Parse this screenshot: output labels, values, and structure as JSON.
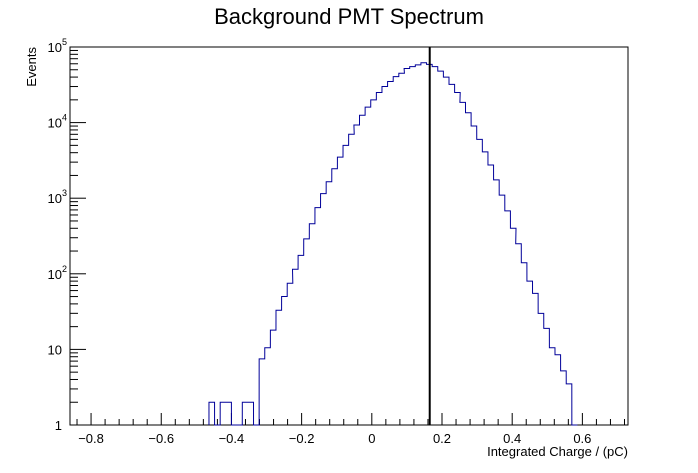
{
  "chart_data": {
    "type": "histogram",
    "title": "Background PMT Spectrum",
    "xlabel": "Integrated Charge / (pC)",
    "ylabel": "Events",
    "xlim": [
      -0.86,
      0.73
    ],
    "ylim": [
      1,
      100000
    ],
    "y_scale": "log",
    "grid": false,
    "legend": "none",
    "colors": {
      "histogram": "#000099",
      "cut_line": "#000000",
      "frame": "#000000"
    },
    "x_ticks": [
      {
        "value": -0.8,
        "label": "−0.8"
      },
      {
        "value": -0.6,
        "label": "−0.6"
      },
      {
        "value": -0.4,
        "label": "−0.4"
      },
      {
        "value": -0.2,
        "label": "−0.2"
      },
      {
        "value": 0,
        "label": "0"
      },
      {
        "value": 0.2,
        "label": "0.2"
      },
      {
        "value": 0.4,
        "label": "0.4"
      },
      {
        "value": 0.6,
        "label": "0.6"
      }
    ],
    "y_ticks": [
      {
        "value": 1,
        "base": "1",
        "exp": ""
      },
      {
        "value": 10,
        "base": "10",
        "exp": ""
      },
      {
        "value": 100,
        "base": "10",
        "exp": "2"
      },
      {
        "value": 1000,
        "base": "10",
        "exp": "3"
      },
      {
        "value": 10000,
        "base": "10",
        "exp": "4"
      },
      {
        "value": 100000,
        "base": "10",
        "exp": "5"
      }
    ],
    "bin_width": 0.0159,
    "bins": [
      {
        "x0": -0.464,
        "count": 2
      },
      {
        "x0": -0.448,
        "count": 1
      },
      {
        "x0": -0.432,
        "count": 2
      },
      {
        "x0": -0.416,
        "count": 2
      },
      {
        "x0": -0.4,
        "count": 1
      },
      {
        "x0": -0.385,
        "count": 1
      },
      {
        "x0": -0.369,
        "count": 2
      },
      {
        "x0": -0.353,
        "count": 2
      },
      {
        "x0": -0.337,
        "count": 1
      },
      {
        "x0": -0.321,
        "count": 7.5
      },
      {
        "x0": -0.305,
        "count": 10.5
      },
      {
        "x0": -0.289,
        "count": 18
      },
      {
        "x0": -0.273,
        "count": 33
      },
      {
        "x0": -0.257,
        "count": 50
      },
      {
        "x0": -0.241,
        "count": 75
      },
      {
        "x0": -0.226,
        "count": 115
      },
      {
        "x0": -0.21,
        "count": 175
      },
      {
        "x0": -0.194,
        "count": 290
      },
      {
        "x0": -0.178,
        "count": 460
      },
      {
        "x0": -0.162,
        "count": 750
      },
      {
        "x0": -0.146,
        "count": 1150
      },
      {
        "x0": -0.13,
        "count": 1650
      },
      {
        "x0": -0.114,
        "count": 2450
      },
      {
        "x0": -0.098,
        "count": 3500
      },
      {
        "x0": -0.082,
        "count": 5000
      },
      {
        "x0": -0.066,
        "count": 7000
      },
      {
        "x0": -0.051,
        "count": 9300
      },
      {
        "x0": -0.035,
        "count": 12500
      },
      {
        "x0": -0.019,
        "count": 16000
      },
      {
        "x0": -0.003,
        "count": 20000
      },
      {
        "x0": 0.013,
        "count": 25000
      },
      {
        "x0": 0.029,
        "count": 30000
      },
      {
        "x0": 0.045,
        "count": 35000
      },
      {
        "x0": 0.061,
        "count": 40500
      },
      {
        "x0": 0.077,
        "count": 45000
      },
      {
        "x0": 0.092,
        "count": 52000
      },
      {
        "x0": 0.108,
        "count": 55000
      },
      {
        "x0": 0.124,
        "count": 58000
      },
      {
        "x0": 0.14,
        "count": 62000
      },
      {
        "x0": 0.156,
        "count": 59000
      },
      {
        "x0": 0.172,
        "count": 55000
      },
      {
        "x0": 0.188,
        "count": 48000
      },
      {
        "x0": 0.204,
        "count": 40000
      },
      {
        "x0": 0.22,
        "count": 32000
      },
      {
        "x0": 0.236,
        "count": 25000
      },
      {
        "x0": 0.251,
        "count": 18500
      },
      {
        "x0": 0.267,
        "count": 13500
      },
      {
        "x0": 0.283,
        "count": 9000
      },
      {
        "x0": 0.299,
        "count": 6000
      },
      {
        "x0": 0.315,
        "count": 4100
      },
      {
        "x0": 0.331,
        "count": 2750
      },
      {
        "x0": 0.347,
        "count": 1750
      },
      {
        "x0": 0.363,
        "count": 1100
      },
      {
        "x0": 0.379,
        "count": 680
      },
      {
        "x0": 0.395,
        "count": 400
      },
      {
        "x0": 0.41,
        "count": 250
      },
      {
        "x0": 0.426,
        "count": 140
      },
      {
        "x0": 0.442,
        "count": 80
      },
      {
        "x0": 0.458,
        "count": 55
      },
      {
        "x0": 0.474,
        "count": 30
      },
      {
        "x0": 0.49,
        "count": 19
      },
      {
        "x0": 0.506,
        "count": 10.5
      },
      {
        "x0": 0.522,
        "count": 8.5
      },
      {
        "x0": 0.538,
        "count": 5.2
      },
      {
        "x0": 0.554,
        "count": 3.5
      },
      {
        "x0": 0.57,
        "count": 1
      }
    ],
    "vertical_line_x": 0.165
  }
}
